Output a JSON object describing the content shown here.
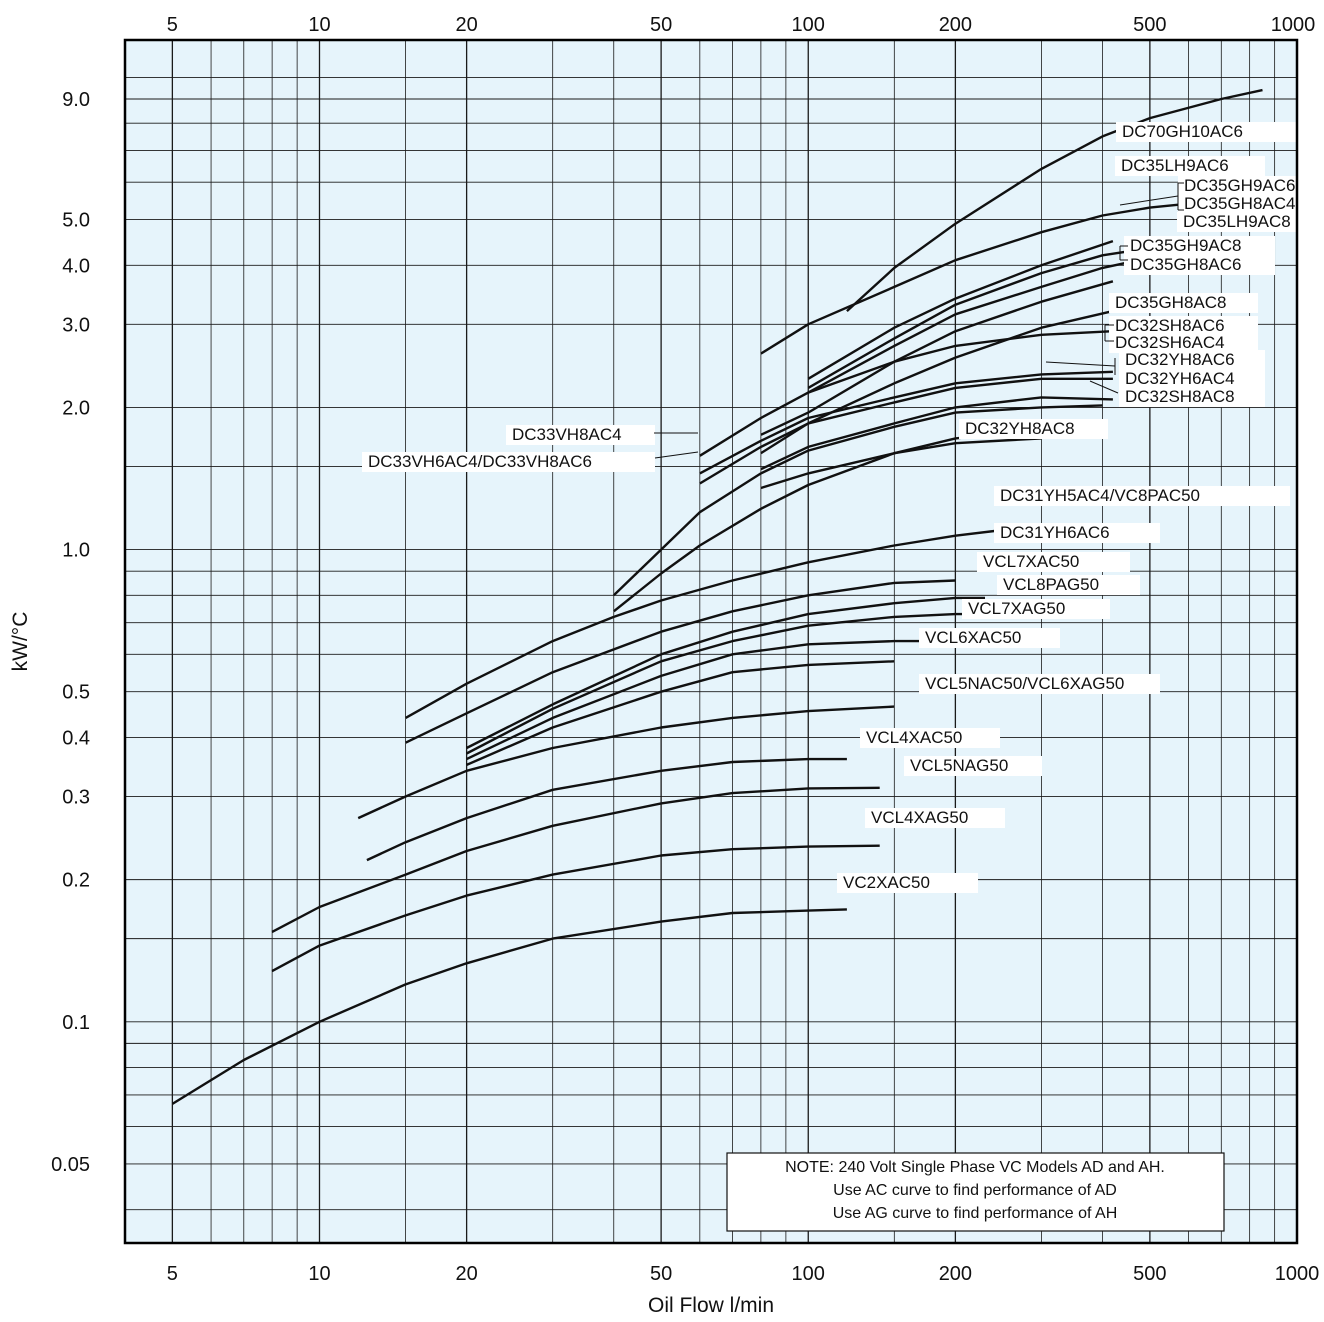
{
  "chart_data": {
    "type": "line",
    "title": "",
    "xlabel": "Oil Flow  l/min",
    "ylabel": "kW/°C",
    "x_scale": "log",
    "y_scale": "log",
    "xlim": [
      4,
      1000
    ],
    "ylim": [
      0.034,
      12
    ],
    "grid": true,
    "x_tick_labels": [
      "5",
      "10",
      "20",
      "50",
      "100",
      "200",
      "500",
      "1000"
    ],
    "x_top_tick_labels": [
      "5",
      "10",
      "20",
      "50",
      "100",
      "200",
      "500",
      "1000"
    ],
    "y_tick_labels": [
      "9.0",
      "5.0",
      "4.0",
      "3.0",
      "2.0",
      "1.0",
      "0.5",
      "0.4",
      "0.3",
      "0.2",
      "0.1",
      "0.05"
    ],
    "series": [
      {
        "name": "DC70GH10AC6",
        "points": [
          [
            120,
            3.2
          ],
          [
            150,
            3.95
          ],
          [
            200,
            4.9
          ],
          [
            300,
            6.4
          ],
          [
            400,
            7.5
          ],
          [
            500,
            8.2
          ],
          [
            700,
            9.0
          ],
          [
            850,
            9.4
          ]
        ]
      },
      {
        "name": "DC35LH9AC6",
        "points": [
          [
            80,
            2.6
          ],
          [
            100,
            3.0
          ],
          [
            150,
            3.6
          ],
          [
            200,
            4.1
          ],
          [
            300,
            4.7
          ],
          [
            400,
            5.1
          ],
          [
            500,
            5.3
          ],
          [
            600,
            5.4
          ]
        ]
      },
      {
        "name": "DC35GH9AC6 / DC35GH8AC4",
        "points": [
          [
            100,
            2.3
          ],
          [
            150,
            2.95
          ],
          [
            200,
            3.4
          ],
          [
            300,
            4.0
          ],
          [
            420,
            4.5
          ]
        ]
      },
      {
        "name": "DC35LH9AC8",
        "points": [
          [
            100,
            2.2
          ],
          [
            150,
            2.8
          ],
          [
            200,
            3.3
          ],
          [
            300,
            3.85
          ],
          [
            400,
            4.2
          ],
          [
            500,
            4.35
          ],
          [
            600,
            4.4
          ]
        ]
      },
      {
        "name": "DC35GH9AC8",
        "points": [
          [
            100,
            2.15
          ],
          [
            150,
            2.7
          ],
          [
            200,
            3.15
          ],
          [
            300,
            3.6
          ],
          [
            400,
            3.95
          ],
          [
            500,
            4.15
          ]
        ]
      },
      {
        "name": "DC35GH8AC6",
        "points": [
          [
            80,
            1.75
          ],
          [
            100,
            1.95
          ],
          [
            150,
            2.5
          ],
          [
            200,
            2.9
          ],
          [
            300,
            3.35
          ],
          [
            420,
            3.7
          ]
        ]
      },
      {
        "name": "DC35GH8AC8",
        "points": [
          [
            80,
            1.6
          ],
          [
            100,
            1.85
          ],
          [
            150,
            2.25
          ],
          [
            200,
            2.55
          ],
          [
            300,
            2.95
          ],
          [
            420,
            3.2
          ]
        ]
      },
      {
        "name": "DC32SH8AC6 / DC32SH6AC4",
        "points": [
          [
            60,
            1.58
          ],
          [
            80,
            1.9
          ],
          [
            100,
            2.15
          ],
          [
            150,
            2.5
          ],
          [
            200,
            2.7
          ],
          [
            300,
            2.85
          ],
          [
            420,
            2.9
          ]
        ]
      },
      {
        "name": "DC32YH8AC6 / DC32YH6AC4",
        "points": [
          [
            60,
            1.45
          ],
          [
            80,
            1.7
          ],
          [
            100,
            1.9
          ],
          [
            150,
            2.1
          ],
          [
            200,
            2.25
          ],
          [
            300,
            2.35
          ],
          [
            420,
            2.38
          ]
        ]
      },
      {
        "name": "DC32SH8AC8",
        "points": [
          [
            80,
            1.48
          ],
          [
            100,
            1.65
          ],
          [
            150,
            1.85
          ],
          [
            200,
            2.0
          ],
          [
            300,
            2.1
          ],
          [
            420,
            2.08
          ]
        ]
      },
      {
        "name": "DC32YH8AC8",
        "points": [
          [
            80,
            1.35
          ],
          [
            100,
            1.45
          ],
          [
            150,
            1.6
          ],
          [
            200,
            1.68
          ],
          [
            300,
            1.72
          ]
        ]
      },
      {
        "name": "DC33VH8AC4",
        "points": [
          [
            60,
            1.38
          ],
          [
            80,
            1.65
          ],
          [
            100,
            1.85
          ],
          [
            150,
            2.05
          ],
          [
            200,
            2.2
          ],
          [
            300,
            2.3
          ],
          [
            420,
            2.3
          ]
        ]
      },
      {
        "name": "DC33VH6AC4/DC33VH8AC6",
        "points": [
          [
            40,
            0.8
          ],
          [
            50,
            1.0
          ],
          [
            60,
            1.2
          ],
          [
            80,
            1.45
          ],
          [
            100,
            1.62
          ],
          [
            150,
            1.82
          ],
          [
            200,
            1.95
          ],
          [
            300,
            2.0
          ],
          [
            400,
            2.02
          ]
        ]
      },
      {
        "name": "DC31YH5AC4/VC8PAC50",
        "points": [
          [
            15,
            0.44
          ],
          [
            20,
            0.52
          ],
          [
            30,
            0.64
          ],
          [
            40,
            0.72
          ],
          [
            50,
            0.78
          ],
          [
            70,
            0.86
          ],
          [
            100,
            0.94
          ],
          [
            150,
            1.02
          ],
          [
            200,
            1.07
          ],
          [
            250,
            1.1
          ]
        ]
      },
      {
        "name": "DC31YH6AC6",
        "points": [
          [
            40,
            0.74
          ],
          [
            50,
            0.89
          ],
          [
            60,
            1.02
          ],
          [
            80,
            1.22
          ],
          [
            100,
            1.37
          ],
          [
            150,
            1.6
          ],
          [
            200,
            1.72
          ],
          [
            300,
            1.8
          ]
        ]
      },
      {
        "name": "VCL7XAC50",
        "points": [
          [
            15,
            0.39
          ],
          [
            20,
            0.45
          ],
          [
            30,
            0.55
          ],
          [
            50,
            0.67
          ],
          [
            70,
            0.74
          ],
          [
            100,
            0.8
          ],
          [
            150,
            0.85
          ],
          [
            200,
            0.86
          ]
        ]
      },
      {
        "name": "VCL8PAG50",
        "points": [
          [
            20,
            0.38
          ],
          [
            30,
            0.47
          ],
          [
            50,
            0.6
          ],
          [
            70,
            0.67
          ],
          [
            100,
            0.73
          ],
          [
            150,
            0.77
          ],
          [
            200,
            0.79
          ],
          [
            230,
            0.79
          ]
        ]
      },
      {
        "name": "VCL7XAG50",
        "points": [
          [
            20,
            0.37
          ],
          [
            30,
            0.46
          ],
          [
            50,
            0.58
          ],
          [
            70,
            0.64
          ],
          [
            100,
            0.69
          ],
          [
            150,
            0.72
          ],
          [
            200,
            0.73
          ],
          [
            250,
            0.73
          ]
        ]
      },
      {
        "name": "VCL6XAC50",
        "points": [
          [
            20,
            0.36
          ],
          [
            30,
            0.44
          ],
          [
            50,
            0.54
          ],
          [
            70,
            0.6
          ],
          [
            100,
            0.63
          ],
          [
            150,
            0.64
          ],
          [
            200,
            0.64
          ]
        ]
      },
      {
        "name": "VCL5NAC50/VCL6XAG50",
        "points": [
          [
            20,
            0.35
          ],
          [
            30,
            0.42
          ],
          [
            50,
            0.5
          ],
          [
            70,
            0.55
          ],
          [
            100,
            0.57
          ],
          [
            150,
            0.58
          ]
        ]
      },
      {
        "name": "VCL4XAC50",
        "points": [
          [
            12,
            0.27
          ],
          [
            15,
            0.3
          ],
          [
            20,
            0.34
          ],
          [
            30,
            0.38
          ],
          [
            50,
            0.42
          ],
          [
            70,
            0.44
          ],
          [
            100,
            0.455
          ],
          [
            150,
            0.465
          ]
        ]
      },
      {
        "name": "VCL5NAG50",
        "points": [
          [
            12.5,
            0.22
          ],
          [
            15,
            0.24
          ],
          [
            20,
            0.27
          ],
          [
            30,
            0.31
          ],
          [
            50,
            0.34
          ],
          [
            70,
            0.355
          ],
          [
            100,
            0.36
          ],
          [
            120,
            0.36
          ]
        ]
      },
      {
        "name": "VCL4XAG50",
        "points": [
          [
            8,
            0.155
          ],
          [
            10,
            0.175
          ],
          [
            15,
            0.205
          ],
          [
            20,
            0.23
          ],
          [
            30,
            0.26
          ],
          [
            50,
            0.29
          ],
          [
            70,
            0.305
          ],
          [
            100,
            0.312
          ],
          [
            140,
            0.313
          ]
        ]
      },
      {
        "name": "VC2XAC50",
        "points": [
          [
            8,
            0.128
          ],
          [
            10,
            0.145
          ],
          [
            15,
            0.168
          ],
          [
            20,
            0.185
          ],
          [
            30,
            0.205
          ],
          [
            50,
            0.225
          ],
          [
            70,
            0.232
          ],
          [
            100,
            0.235
          ],
          [
            140,
            0.236
          ]
        ]
      },
      {
        "name": "VC2XAC50 (lower)",
        "points": [
          [
            5,
            0.067
          ],
          [
            7,
            0.083
          ],
          [
            10,
            0.1
          ],
          [
            15,
            0.12
          ],
          [
            20,
            0.133
          ],
          [
            30,
            0.15
          ],
          [
            50,
            0.163
          ],
          [
            70,
            0.17
          ],
          [
            100,
            0.172
          ],
          [
            120,
            0.173
          ]
        ]
      }
    ],
    "labels": [
      {
        "text": "DC70GH10AC6"
      },
      {
        "text": "DC35LH9AC6"
      },
      {
        "text": "DC35GH9AC6"
      },
      {
        "text": "DC35GH8AC4"
      },
      {
        "text": "DC35LH9AC8"
      },
      {
        "text": "DC35GH9AC8"
      },
      {
        "text": "DC35GH8AC6"
      },
      {
        "text": "DC35GH8AC8"
      },
      {
        "text": "DC32SH8AC6"
      },
      {
        "text": "DC32SH6AC4"
      },
      {
        "text": "DC32YH8AC6"
      },
      {
        "text": "DC32YH6AC4"
      },
      {
        "text": "DC32SH8AC8"
      },
      {
        "text": "DC32YH8AC8"
      },
      {
        "text": "DC33VH8AC4"
      },
      {
        "text": "DC33VH6AC4/DC33VH8AC6"
      },
      {
        "text": "DC31YH5AC4/VC8PAC50"
      },
      {
        "text": "DC31YH6AC6"
      },
      {
        "text": "VCL7XAC50"
      },
      {
        "text": "VCL8PAG50"
      },
      {
        "text": "VCL7XAG50"
      },
      {
        "text": "VCL6XAC50"
      },
      {
        "text": "VCL5NAC50/VCL6XAG50"
      },
      {
        "text": "VCL4XAC50"
      },
      {
        "text": "VCL5NAG50"
      },
      {
        "text": "VCL4XAG50"
      },
      {
        "text": "VC2XAC50"
      }
    ],
    "note": [
      "NOTE: 240 Volt Single Phase VC Models AD and AH.",
      "Use AC curve to find performance of AD",
      "Use AG curve to find performance of AH"
    ],
    "colors": {
      "plot_background": "#e6f4fb",
      "curve": "#111111",
      "grid": "#1a1a1a"
    }
  }
}
